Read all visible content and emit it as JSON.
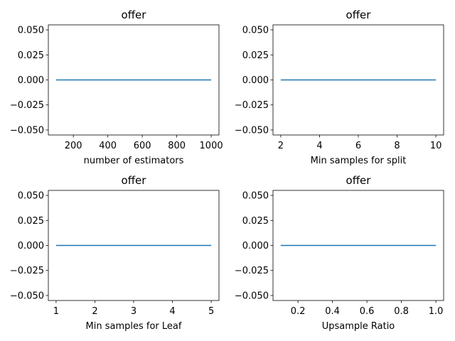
{
  "chart_data": [
    {
      "type": "line",
      "title": "offer",
      "xlabel": "number of estimators",
      "ylabel": "",
      "x": [
        100,
        200,
        300,
        400,
        500,
        600,
        700,
        800,
        900,
        1000
      ],
      "series": [
        {
          "values": [
            0,
            0,
            0,
            0,
            0,
            0,
            0,
            0,
            0,
            0
          ],
          "color": "#1f77b4"
        }
      ],
      "xlim": [
        55,
        1045
      ],
      "ylim": [
        -0.055,
        0.055
      ],
      "xticks": [
        200,
        400,
        600,
        800,
        1000
      ],
      "xtick_labels": [
        "200",
        "400",
        "600",
        "800",
        "1000"
      ],
      "yticks": [
        0.05,
        0.025,
        0.0,
        -0.025,
        -0.05
      ],
      "ytick_labels": [
        "0.050",
        "0.025",
        "0.000",
        "−0.025",
        "−0.050"
      ]
    },
    {
      "type": "line",
      "title": "offer",
      "xlabel": "Min samples for split",
      "ylabel": "",
      "x": [
        2,
        3,
        4,
        5,
        6,
        7,
        8,
        9,
        10
      ],
      "series": [
        {
          "values": [
            0,
            0,
            0,
            0,
            0,
            0,
            0,
            0,
            0
          ],
          "color": "#1f77b4"
        }
      ],
      "xlim": [
        1.6,
        10.4
      ],
      "ylim": [
        -0.055,
        0.055
      ],
      "xticks": [
        2,
        4,
        6,
        8,
        10
      ],
      "xtick_labels": [
        "2",
        "4",
        "6",
        "8",
        "10"
      ],
      "yticks": [
        0.05,
        0.025,
        0.0,
        -0.025,
        -0.05
      ],
      "ytick_labels": [
        "0.050",
        "0.025",
        "0.000",
        "−0.025",
        "−0.050"
      ]
    },
    {
      "type": "line",
      "title": "offer",
      "xlabel": "Min samples for Leaf",
      "ylabel": "",
      "x": [
        1,
        2,
        3,
        4,
        5
      ],
      "series": [
        {
          "values": [
            0,
            0,
            0,
            0,
            0
          ],
          "color": "#1f77b4"
        }
      ],
      "xlim": [
        0.8,
        5.2
      ],
      "ylim": [
        -0.055,
        0.055
      ],
      "xticks": [
        1,
        2,
        3,
        4,
        5
      ],
      "xtick_labels": [
        "1",
        "2",
        "3",
        "4",
        "5"
      ],
      "yticks": [
        0.05,
        0.025,
        0.0,
        -0.025,
        -0.05
      ],
      "ytick_labels": [
        "0.050",
        "0.025",
        "0.000",
        "−0.025",
        "−0.050"
      ]
    },
    {
      "type": "line",
      "title": "offer",
      "xlabel": "Upsample Ratio",
      "ylabel": "",
      "x": [
        0.1,
        0.2,
        0.3,
        0.4,
        0.5,
        0.6,
        0.7,
        0.8,
        0.9,
        1.0
      ],
      "series": [
        {
          "values": [
            0,
            0,
            0,
            0,
            0,
            0,
            0,
            0,
            0,
            0
          ],
          "color": "#1f77b4"
        }
      ],
      "xlim": [
        0.055,
        1.045
      ],
      "ylim": [
        -0.055,
        0.055
      ],
      "xticks": [
        0.2,
        0.4,
        0.6,
        0.8,
        1.0
      ],
      "xtick_labels": [
        "0.2",
        "0.4",
        "0.6",
        "0.8",
        "1.0"
      ],
      "yticks": [
        0.05,
        0.025,
        0.0,
        -0.025,
        -0.05
      ],
      "ytick_labels": [
        "0.050",
        "0.025",
        "0.000",
        "−0.025",
        "−0.050"
      ]
    }
  ]
}
